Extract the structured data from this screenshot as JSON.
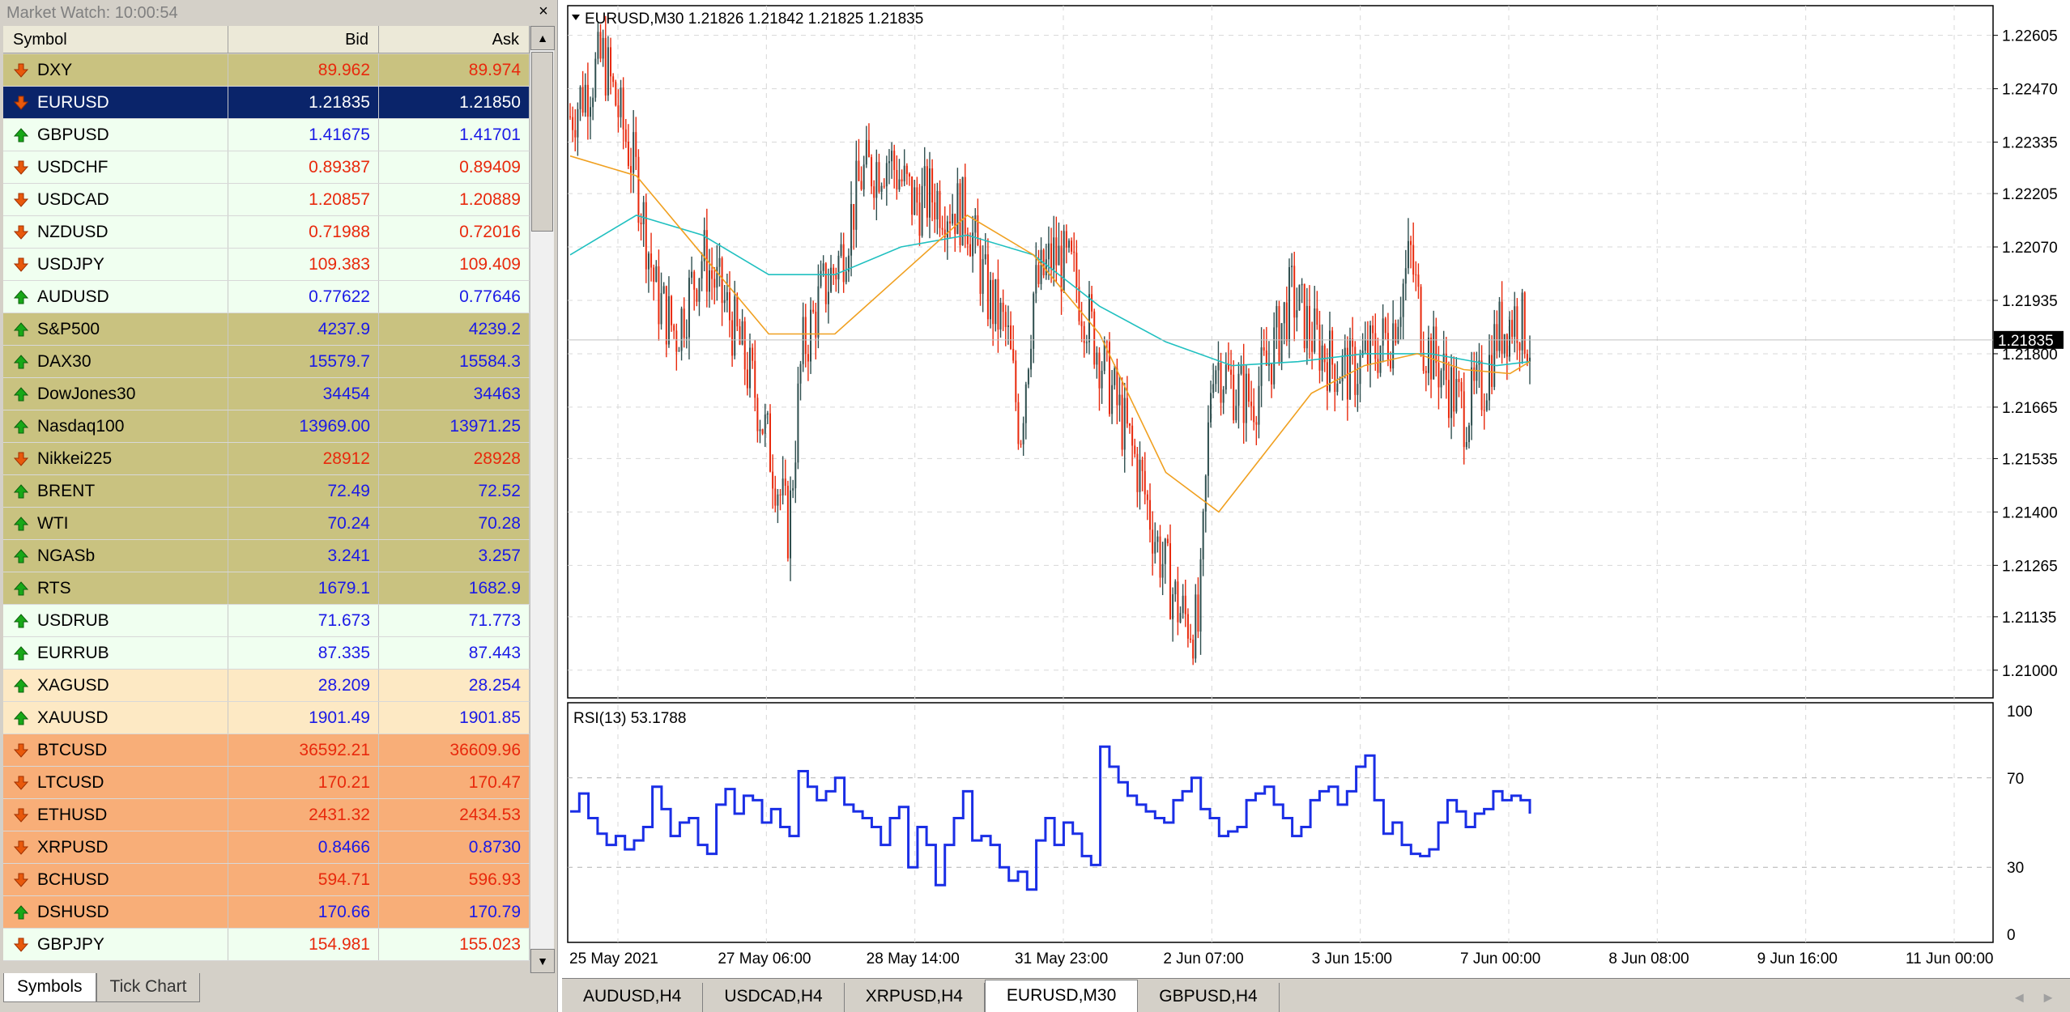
{
  "market_watch": {
    "title": "Market Watch: 10:00:54",
    "close_label": "×",
    "columns": {
      "symbol": "Symbol",
      "bid": "Bid",
      "ask": "Ask"
    },
    "rows": [
      {
        "symbol": "DXY",
        "bid": "89.962",
        "ask": "89.974",
        "dir": "down",
        "bg": "#c9c280",
        "color": "#e8290c"
      },
      {
        "symbol": "EURUSD",
        "bid": "1.21835",
        "ask": "1.21850",
        "dir": "down",
        "bg": "#0a246a",
        "color": "#ffffff",
        "selected": true
      },
      {
        "symbol": "GBPUSD",
        "bid": "1.41675",
        "ask": "1.41701",
        "dir": "up",
        "bg": "#f0fff0",
        "color": "#1a1ae6"
      },
      {
        "symbol": "USDCHF",
        "bid": "0.89387",
        "ask": "0.89409",
        "dir": "down",
        "bg": "#f0fff0",
        "color": "#e8290c"
      },
      {
        "symbol": "USDCAD",
        "bid": "1.20857",
        "ask": "1.20889",
        "dir": "down",
        "bg": "#f0fff0",
        "color": "#e8290c"
      },
      {
        "symbol": "NZDUSD",
        "bid": "0.71988",
        "ask": "0.72016",
        "dir": "down",
        "bg": "#f0fff0",
        "color": "#e8290c"
      },
      {
        "symbol": "USDJPY",
        "bid": "109.383",
        "ask": "109.409",
        "dir": "down",
        "bg": "#f0fff0",
        "color": "#e8290c"
      },
      {
        "symbol": "AUDUSD",
        "bid": "0.77622",
        "ask": "0.77646",
        "dir": "up",
        "bg": "#f0fff0",
        "color": "#1a1ae6"
      },
      {
        "symbol": "S&P500",
        "bid": "4237.9",
        "ask": "4239.2",
        "dir": "up",
        "bg": "#c9c280",
        "color": "#1a1ae6"
      },
      {
        "symbol": "DAX30",
        "bid": "15579.7",
        "ask": "15584.3",
        "dir": "up",
        "bg": "#c9c280",
        "color": "#1a1ae6"
      },
      {
        "symbol": "DowJones30",
        "bid": "34454",
        "ask": "34463",
        "dir": "up",
        "bg": "#c9c280",
        "color": "#1a1ae6"
      },
      {
        "symbol": "Nasdaq100",
        "bid": "13969.00",
        "ask": "13971.25",
        "dir": "up",
        "bg": "#c9c280",
        "color": "#1a1ae6"
      },
      {
        "symbol": "Nikkei225",
        "bid": "28912",
        "ask": "28928",
        "dir": "down",
        "bg": "#c9c280",
        "color": "#e8290c"
      },
      {
        "symbol": "BRENT",
        "bid": "72.49",
        "ask": "72.52",
        "dir": "up",
        "bg": "#c9c280",
        "color": "#1a1ae6"
      },
      {
        "symbol": "WTI",
        "bid": "70.24",
        "ask": "70.28",
        "dir": "up",
        "bg": "#c9c280",
        "color": "#1a1ae6"
      },
      {
        "symbol": "NGASb",
        "bid": "3.241",
        "ask": "3.257",
        "dir": "up",
        "bg": "#c9c280",
        "color": "#1a1ae6"
      },
      {
        "symbol": "RTS",
        "bid": "1679.1",
        "ask": "1682.9",
        "dir": "up",
        "bg": "#c9c280",
        "color": "#1a1ae6"
      },
      {
        "symbol": "USDRUB",
        "bid": "71.673",
        "ask": "71.773",
        "dir": "up",
        "bg": "#f0fff0",
        "color": "#1a1ae6"
      },
      {
        "symbol": "EURRUB",
        "bid": "87.335",
        "ask": "87.443",
        "dir": "up",
        "bg": "#f0fff0",
        "color": "#1a1ae6"
      },
      {
        "symbol": "XAGUSD",
        "bid": "28.209",
        "ask": "28.254",
        "dir": "up",
        "bg": "#fde9c4",
        "color": "#1a1ae6"
      },
      {
        "symbol": "XAUUSD",
        "bid": "1901.49",
        "ask": "1901.85",
        "dir": "up",
        "bg": "#fde9c4",
        "color": "#1a1ae6"
      },
      {
        "symbol": "BTCUSD",
        "bid": "36592.21",
        "ask": "36609.96",
        "dir": "down",
        "bg": "#f8ae78",
        "color": "#e8290c"
      },
      {
        "symbol": "LTCUSD",
        "bid": "170.21",
        "ask": "170.47",
        "dir": "down",
        "bg": "#f8ae78",
        "color": "#e8290c"
      },
      {
        "symbol": "ETHUSD",
        "bid": "2431.32",
        "ask": "2434.53",
        "dir": "down",
        "bg": "#f8ae78",
        "color": "#e8290c"
      },
      {
        "symbol": "XRPUSD",
        "bid": "0.8466",
        "ask": "0.8730",
        "dir": "down",
        "bg": "#f8ae78",
        "color": "#1a1ae6"
      },
      {
        "symbol": "BCHUSD",
        "bid": "594.71",
        "ask": "596.93",
        "dir": "down",
        "bg": "#f8ae78",
        "color": "#e8290c"
      },
      {
        "symbol": "DSHUSD",
        "bid": "170.66",
        "ask": "170.79",
        "dir": "up",
        "bg": "#f8ae78",
        "color": "#1a1ae6"
      },
      {
        "symbol": "GBPJPY",
        "bid": "154.981",
        "ask": "155.023",
        "dir": "down",
        "bg": "#f0fff0",
        "color": "#e8290c"
      }
    ],
    "tabs": [
      {
        "label": "Symbols",
        "active": true
      },
      {
        "label": "Tick Chart",
        "active": false
      }
    ]
  },
  "chart": {
    "header": "EURUSD,M30  1.21826 1.21842 1.21825 1.21835",
    "current_price_label": "1.21835",
    "rsi_label": "RSI(13) 53.1788",
    "tabs": [
      {
        "label": "AUDUSD,H4",
        "active": false
      },
      {
        "label": "USDCAD,H4",
        "active": false
      },
      {
        "label": "XRPUSD,H4",
        "active": false
      },
      {
        "label": "EURUSD,M30",
        "active": true
      },
      {
        "label": "GBPUSD,H4",
        "active": false
      }
    ],
    "tab_nav": [
      "◄",
      "►"
    ],
    "colors": {
      "bull": "#2f4f4f",
      "bear": "#e8290c",
      "ma_fast": "#f0a020",
      "ma_slow": "#20c0c0",
      "rsi": "#1a2ee6",
      "grid": "#d8d8d8"
    }
  },
  "chart_data": [
    {
      "type": "candlestick",
      "title": "EURUSD,M30",
      "ylim": [
        1.2093,
        1.2268
      ],
      "y_ticks": [
        "1.22605",
        "1.22470",
        "1.22335",
        "1.22205",
        "1.22070",
        "1.21935",
        "1.21800",
        "1.21665",
        "1.21535",
        "1.21400",
        "1.21265",
        "1.21135",
        "1.21000"
      ],
      "x_ticks": [
        "25 May 2021",
        "27 May 06:00",
        "28 May 14:00",
        "31 May 23:00",
        "2 Jun 07:00",
        "3 Jun 15:00",
        "7 Jun 00:00",
        "8 Jun 08:00",
        "9 Jun 16:00",
        "11 Jun 00:00"
      ],
      "close_path": [
        [
          0,
          1.224
        ],
        [
          0.5,
          1.2255
        ],
        [
          1.0,
          1.2225
        ],
        [
          1.3,
          1.2195
        ],
        [
          1.6,
          1.2185
        ],
        [
          2.0,
          1.2205
        ],
        [
          2.4,
          1.219
        ],
        [
          2.8,
          1.217
        ],
        [
          3.1,
          1.215
        ],
        [
          3.3,
          1.2135
        ],
        [
          3.5,
          1.218
        ],
        [
          3.8,
          1.2195
        ],
        [
          4.1,
          1.2205
        ],
        [
          4.4,
          1.2225
        ],
        [
          4.8,
          1.223
        ],
        [
          5.2,
          1.2218
        ],
        [
          5.5,
          1.222
        ],
        [
          6.0,
          1.2215
        ],
        [
          6.3,
          1.2195
        ],
        [
          6.6,
          1.2185
        ],
        [
          6.8,
          1.216
        ],
        [
          7.0,
          1.2195
        ],
        [
          7.3,
          1.2205
        ],
        [
          7.6,
          1.22
        ],
        [
          7.9,
          1.2185
        ],
        [
          8.3,
          1.2165
        ],
        [
          8.6,
          1.215
        ],
        [
          8.9,
          1.213
        ],
        [
          9.2,
          1.2115
        ],
        [
          9.5,
          1.211
        ],
        [
          9.7,
          1.218
        ],
        [
          10.0,
          1.2172
        ],
        [
          10.3,
          1.2168
        ],
        [
          10.6,
          1.218
        ],
        [
          10.9,
          1.2195
        ],
        [
          11.2,
          1.2185
        ],
        [
          11.5,
          1.2178
        ],
        [
          11.8,
          1.2175
        ],
        [
          12.1,
          1.218
        ],
        [
          12.4,
          1.2185
        ],
        [
          12.7,
          1.2205
        ],
        [
          12.9,
          1.2183
        ],
        [
          13.2,
          1.2175
        ],
        [
          13.5,
          1.2165
        ],
        [
          13.8,
          1.2172
        ],
        [
          14.0,
          1.2185
        ],
        [
          14.3,
          1.219
        ],
        [
          14.5,
          1.2183
        ]
      ],
      "ma_fast": [
        [
          0,
          1.223
        ],
        [
          1.0,
          1.2225
        ],
        [
          2.0,
          1.2205
        ],
        [
          3.0,
          1.2185
        ],
        [
          4.0,
          1.2185
        ],
        [
          5.0,
          1.22
        ],
        [
          6.0,
          1.2215
        ],
        [
          7.0,
          1.2205
        ],
        [
          8.0,
          1.2185
        ],
        [
          9.0,
          1.215
        ],
        [
          9.8,
          1.214
        ],
        [
          10.5,
          1.2155
        ],
        [
          11.2,
          1.217
        ],
        [
          12.0,
          1.2177
        ],
        [
          12.8,
          1.218
        ],
        [
          13.5,
          1.2176
        ],
        [
          14.2,
          1.2175
        ],
        [
          14.5,
          1.2178
        ]
      ],
      "ma_slow": [
        [
          0,
          1.2205
        ],
        [
          1.0,
          1.2215
        ],
        [
          2.0,
          1.221
        ],
        [
          3.0,
          1.22
        ],
        [
          4.0,
          1.22
        ],
        [
          5.0,
          1.2207
        ],
        [
          6.0,
          1.221
        ],
        [
          7.0,
          1.2205
        ],
        [
          8.0,
          1.2192
        ],
        [
          9.0,
          1.2183
        ],
        [
          10.0,
          1.2177
        ],
        [
          11.0,
          1.2178
        ],
        [
          12.0,
          1.218
        ],
        [
          13.0,
          1.218
        ],
        [
          14.0,
          1.2177
        ],
        [
          14.5,
          1.2178
        ]
      ]
    },
    {
      "type": "line",
      "title": "RSI(13) 53.1788",
      "ylim": [
        0,
        100
      ],
      "y_ticks": [
        "100",
        "70",
        "30",
        "0"
      ],
      "levels": [
        70,
        30
      ],
      "values": [
        55,
        63,
        52,
        45,
        40,
        44,
        38,
        42,
        48,
        66,
        56,
        44,
        50,
        52,
        40,
        36,
        58,
        65,
        54,
        62,
        60,
        50,
        56,
        48,
        44,
        73,
        66,
        60,
        64,
        70,
        58,
        55,
        52,
        48,
        40,
        52,
        57,
        30,
        48,
        40,
        22,
        40,
        52,
        64,
        42,
        44,
        40,
        30,
        24,
        28,
        20,
        42,
        52,
        40,
        50,
        45,
        35,
        31,
        84,
        75,
        68,
        62,
        58,
        55,
        52,
        50,
        60,
        64,
        70,
        56,
        52,
        44,
        46,
        48,
        60,
        63,
        66,
        58,
        52,
        44,
        48,
        60,
        64,
        66,
        58,
        64,
        75,
        80,
        60,
        45,
        50,
        40,
        36,
        35,
        38,
        50,
        60,
        55,
        48,
        54,
        56,
        64,
        60,
        62,
        60,
        54
      ]
    }
  ]
}
